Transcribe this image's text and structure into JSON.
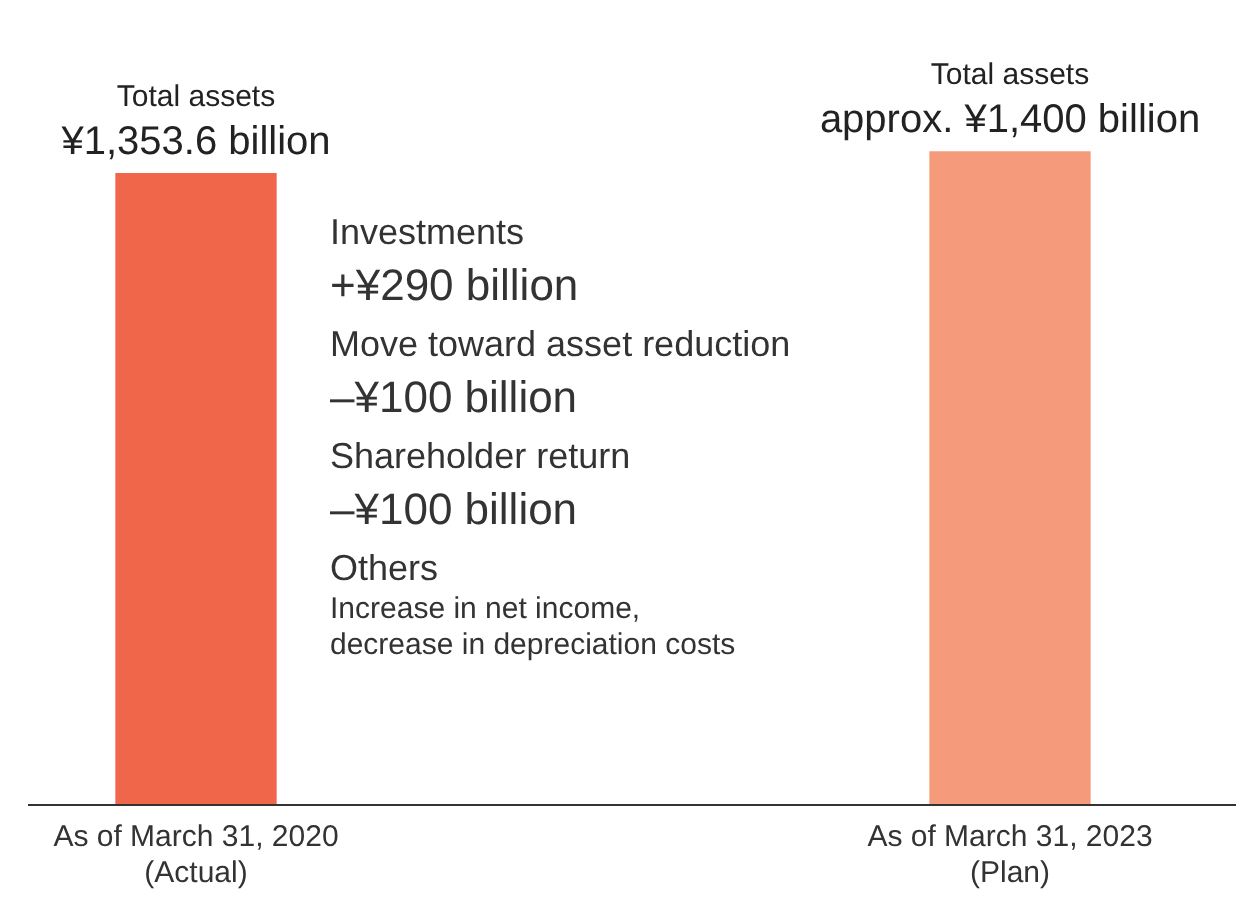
{
  "chart_data": {
    "type": "bar",
    "categories": [
      "As of March 31, 2020\n(Actual)",
      "As of March 31, 2023\n(Plan)"
    ],
    "values": [
      1353.6,
      1400
    ],
    "colors": [
      "#f0664a",
      "#f59a7a"
    ],
    "value_labels": [
      "Total assets\n¥1,353.6 billion",
      "Total assets\napprox. ¥1,400 billion"
    ],
    "tick_labels": "x",
    "grid": false,
    "legend": false,
    "annotations": [
      "Investments",
      "+¥290 billion",
      "Move toward asset reduction",
      "–¥100 billion",
      "Shareholder return",
      "–¥100 billion",
      "Others",
      "Increase in net income,\ndecrease in depreciation costs"
    ]
  }
}
